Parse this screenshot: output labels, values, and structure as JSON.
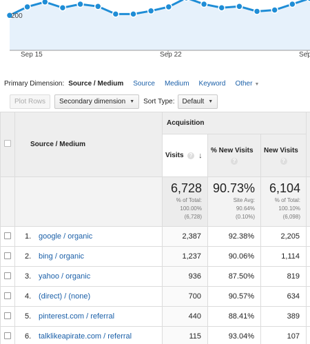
{
  "chart": {
    "y_tick": "200",
    "x_ticks": [
      "Sep 15",
      "Sep 22",
      "Sep"
    ],
    "line_color": "#1f8dd6",
    "fill_color": "#e6f1fb",
    "series": [
      58,
      77,
      88,
      75,
      83,
      78,
      61,
      61,
      68,
      77,
      97,
      83,
      75,
      78,
      67,
      70,
      83,
      96
    ]
  },
  "primary": {
    "label": "Primary Dimension:",
    "active": "Source / Medium",
    "links": [
      "Source",
      "Medium",
      "Keyword"
    ],
    "other": "Other"
  },
  "toolbar": {
    "plot_rows": "Plot Rows",
    "secondary": "Secondary dimension",
    "sort_label": "Sort Type:",
    "sort_value": "Default"
  },
  "table": {
    "group_header": "Acquisition",
    "dim_header": "Source / Medium",
    "columns": [
      "Visits",
      "% New Visits",
      "New Visits"
    ],
    "summary": [
      {
        "big": "6,728",
        "l1": "% of Total:",
        "l2": "100.00%",
        "l3": "(6,728)"
      },
      {
        "big": "90.73%",
        "l1": "Site Avg:",
        "l2": "90.64%",
        "l3": "(0.10%)"
      },
      {
        "big": "6,104",
        "l1": "% of Total:",
        "l2": "100.10%",
        "l3": "(6,098)"
      }
    ],
    "rows": [
      {
        "idx": "1.",
        "source": "google / organic",
        "visits": "2,387",
        "pct_new": "92.38%",
        "new": "2,205"
      },
      {
        "idx": "2.",
        "source": "bing / organic",
        "visits": "1,237",
        "pct_new": "90.06%",
        "new": "1,114"
      },
      {
        "idx": "3.",
        "source": "yahoo / organic",
        "visits": "936",
        "pct_new": "87.50%",
        "new": "819"
      },
      {
        "idx": "4.",
        "source": "(direct) / (none)",
        "visits": "700",
        "pct_new": "90.57%",
        "new": "634"
      },
      {
        "idx": "5.",
        "source": "pinterest.com / referral",
        "visits": "440",
        "pct_new": "88.41%",
        "new": "389"
      },
      {
        "idx": "6.",
        "source": "talklikeapirate.com / referral",
        "visits": "115",
        "pct_new": "93.04%",
        "new": "107"
      }
    ]
  }
}
